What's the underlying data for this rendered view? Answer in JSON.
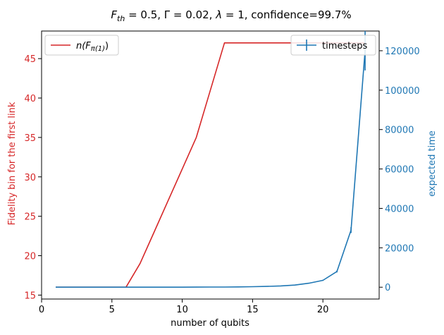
{
  "chart_data": {
    "type": "line",
    "title": "F_th = 0.5, Γ = 0.02, λ = 1, confidence=99.7%",
    "title_parts": [
      {
        "text": "F",
        "style": "italic"
      },
      {
        "text": "th",
        "style": "italic-sub"
      },
      {
        "text": " = 0.5, Γ = 0.02, ",
        "style": "normal"
      },
      {
        "text": "λ",
        "style": "italic"
      },
      {
        "text": " = 1, confidence=99.7%",
        "style": "normal"
      }
    ],
    "xlabel": "number of qubits",
    "ylabel_left": "Fidelity bin for the first link",
    "ylabel_right": "expected time",
    "xlim": [
      0,
      24
    ],
    "ylim_left": [
      14.5,
      48.5
    ],
    "ylim_right": [
      -6000,
      130000
    ],
    "xticks": [
      0,
      5,
      10,
      15,
      20
    ],
    "yticks_left": [
      15,
      20,
      25,
      30,
      35,
      40,
      45
    ],
    "yticks_right": [
      0,
      20000,
      40000,
      60000,
      80000,
      100000,
      120000
    ],
    "grid": false,
    "colors": {
      "left": "#d62728",
      "right": "#1f77b4"
    },
    "series": [
      {
        "name": "n(F_π(1))",
        "axis": "left",
        "x": [
          1,
          2,
          3,
          4,
          5,
          6,
          7,
          8,
          9,
          10,
          11,
          12,
          13,
          14,
          15,
          16,
          17,
          18,
          19,
          20,
          21,
          22,
          23
        ],
        "y": [
          16,
          16,
          16,
          16,
          16,
          16,
          19,
          23,
          27,
          31,
          35,
          41,
          47,
          47,
          47,
          47,
          47,
          47,
          47,
          47,
          47,
          47,
          47
        ]
      },
      {
        "name": "timesteps",
        "axis": "right",
        "x": [
          1,
          2,
          3,
          4,
          5,
          6,
          7,
          8,
          9,
          10,
          11,
          12,
          13,
          14,
          15,
          16,
          17,
          18,
          19,
          20,
          21,
          22,
          23
        ],
        "y": [
          0,
          0,
          0,
          0,
          0,
          0,
          0,
          0,
          10,
          20,
          40,
          70,
          100,
          160,
          250,
          400,
          650,
          1100,
          2000,
          3500,
          8000,
          29000,
          120000
        ],
        "yerr": [
          0,
          0,
          0,
          0,
          0,
          0,
          0,
          0,
          0,
          0,
          0,
          0,
          0,
          0,
          0,
          0,
          0,
          100,
          150,
          250,
          500,
          1500,
          10000
        ]
      }
    ],
    "legends": [
      {
        "placement": "upper-left",
        "series": 0,
        "label_main": "n(F",
        "label_sub": "π(1)",
        "label_end": ")"
      },
      {
        "placement": "upper-right",
        "series": 1,
        "label_main": "timesteps",
        "label_sub": "",
        "label_end": ""
      }
    ]
  }
}
